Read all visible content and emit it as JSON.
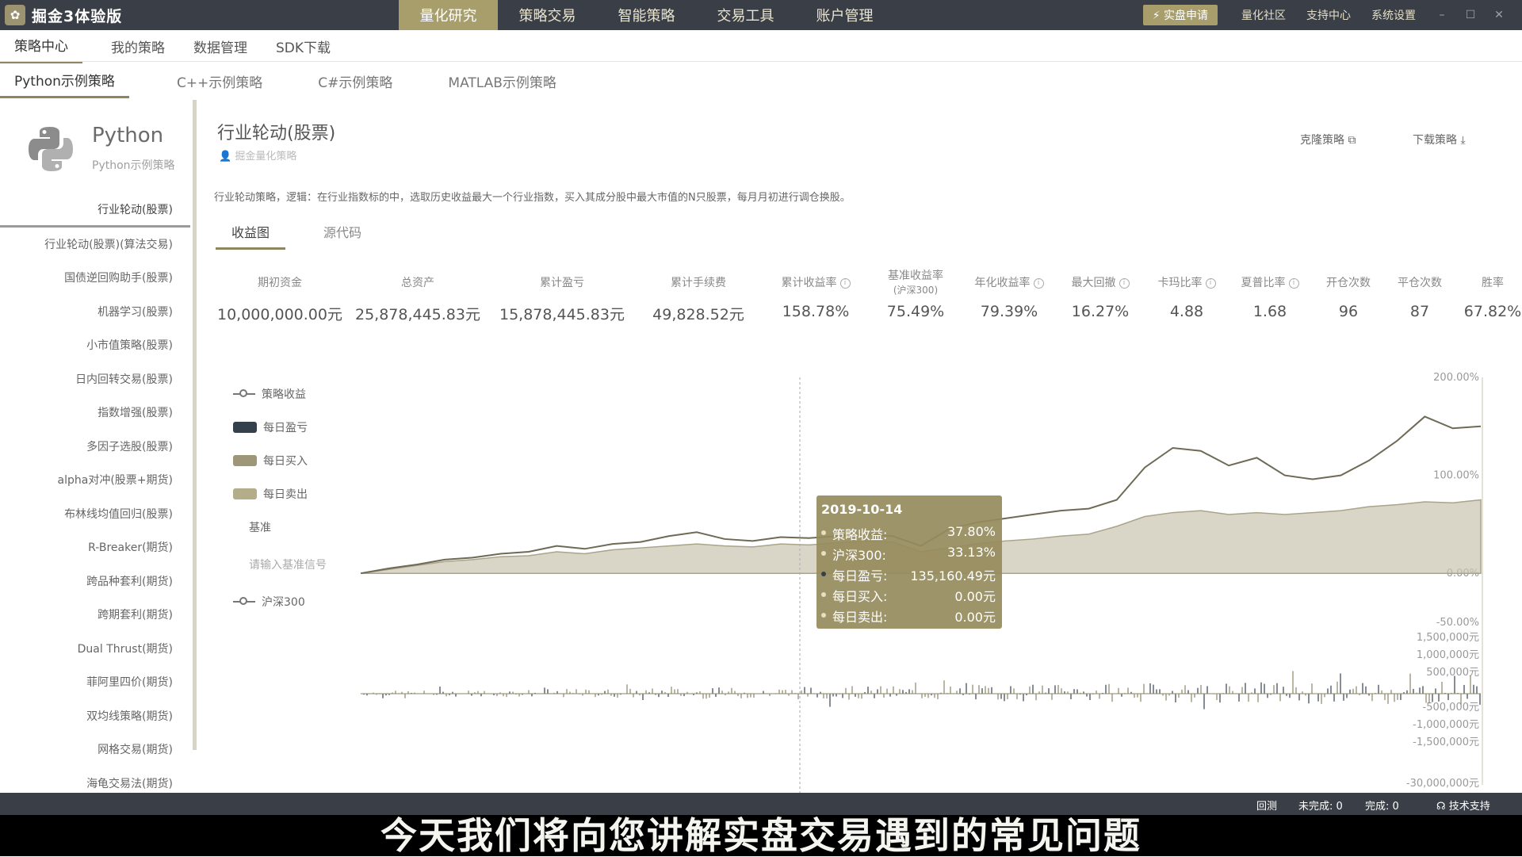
{
  "app": {
    "title": "掘金3体验版"
  },
  "main_nav": [
    "量化研究",
    "策略交易",
    "智能策略",
    "交易工具",
    "账户管理"
  ],
  "top_right": {
    "live": "实盘申请",
    "links": [
      "量化社区",
      "支持中心",
      "系统设置"
    ]
  },
  "sub_nav": [
    "策略中心",
    "我的策略",
    "数据管理",
    "SDK下载"
  ],
  "lang_tabs": [
    "Python示例策略",
    "C++示例策略",
    "C#示例策略",
    "MATLAB示例策略"
  ],
  "sidebar": {
    "lang_name": "Python",
    "lang_sub": "Python示例策略",
    "items": [
      "行业轮动(股票)",
      "行业轮动(股票)(算法交易)",
      "国债逆回购助手(股票)",
      "机器学习(股票)",
      "小市值策略(股票)",
      "日内回转交易(股票)",
      "指数增强(股票)",
      "多因子选股(股票)",
      "alpha对冲(股票+期货)",
      "布林线均值回归(股票)",
      "R-Breaker(期货)",
      "跨品种套利(期货)",
      "跨期套利(期货)",
      "Dual Thrust(期货)",
      "菲阿里四价(期货)",
      "双均线策略(期货)",
      "网格交易(期货)",
      "海龟交易法(期货)"
    ]
  },
  "strategy": {
    "title": "行业轮动(股票)",
    "author": "掘金量化策略",
    "clone": "克隆策略",
    "download": "下载策略",
    "description": "行业轮动策略，逻辑：在行业指数标的中，选取历史收益最大一个行业指数，买入其成分股中最大市值的N只股票，每月月初进行调仓换股。",
    "tabs": [
      "收益图",
      "源代码"
    ]
  },
  "metrics": [
    {
      "label": "期初资金",
      "value": "10,000,000.00元",
      "info": false
    },
    {
      "label": "总资产",
      "value": "25,878,445.83元",
      "info": false
    },
    {
      "label": "累计盈亏",
      "value": "15,878,445.83元",
      "info": false
    },
    {
      "label": "累计手续费",
      "value": "49,828.52元",
      "info": false
    },
    {
      "label": "累计收益率",
      "value": "158.78%",
      "info": true
    },
    {
      "label": "基准收益率",
      "label2": "(沪深300)",
      "value": "75.49%",
      "info": false
    },
    {
      "label": "年化收益率",
      "value": "79.39%",
      "info": true
    },
    {
      "label": "最大回撤",
      "value": "16.27%",
      "info": true
    },
    {
      "label": "卡玛比率",
      "value": "4.88",
      "info": true
    },
    {
      "label": "夏普比率",
      "value": "1.68",
      "info": true
    },
    {
      "label": "开仓次数",
      "value": "96",
      "info": false
    },
    {
      "label": "平仓次数",
      "value": "87",
      "info": false
    },
    {
      "label": "胜率",
      "value": "67.82%",
      "info": false
    }
  ],
  "legend": {
    "strategy": "策略收益",
    "daily_pnl": "每日盈亏",
    "daily_buy": "每日买入",
    "daily_sell": "每日卖出",
    "benchmark_title": "基准",
    "benchmark_placeholder": "请输入基准信号",
    "hs300": "沪深300"
  },
  "colors": {
    "accent": "#a89e6c",
    "dark": "#3a3f47",
    "strategy_line": "#6e6a55",
    "benchmark_fill": "#c9c5b0",
    "pnl": "#34414d"
  },
  "chart_data": {
    "type": "line",
    "y_ticks": [
      "200.00%",
      "100.00%",
      "0.00%",
      "-50.00%"
    ],
    "y2_ticks": [
      "1,500,000元",
      "1,000,000元",
      "500,000元",
      "-500,000元",
      "-1,000,000元",
      "-1,500,000元",
      "-30,000,000元"
    ],
    "ylim": [
      -50,
      200
    ],
    "series": [
      {
        "name": "策略收益",
        "values": [
          0,
          5,
          9,
          14,
          16,
          20,
          22,
          28,
          25,
          30,
          32,
          38,
          42,
          35,
          33,
          37,
          36,
          38,
          40,
          38,
          28,
          45,
          52,
          56,
          60,
          64,
          66,
          75,
          108,
          128,
          125,
          110,
          118,
          100,
          96,
          100,
          115,
          135,
          160,
          148,
          150
        ]
      },
      {
        "name": "沪深300",
        "values": [
          0,
          4,
          8,
          12,
          14,
          17,
          18,
          22,
          20,
          24,
          26,
          28,
          30,
          28,
          27,
          30,
          29,
          31,
          33,
          32,
          22,
          26,
          30,
          33,
          35,
          38,
          40,
          48,
          58,
          62,
          64,
          60,
          62,
          60,
          62,
          64,
          68,
          70,
          73,
          72,
          75
        ]
      }
    ]
  },
  "tooltip": {
    "date": "2019-10-14",
    "rows": [
      {
        "k": "策略收益:",
        "v": "37.80%"
      },
      {
        "k": "沪深300:",
        "v": "33.13%"
      },
      {
        "k": "每日盈亏:",
        "v": "135,160.49元"
      },
      {
        "k": "每日买入:",
        "v": "0.00元"
      },
      {
        "k": "每日卖出:",
        "v": "0.00元"
      }
    ]
  },
  "status": {
    "backtest": "回测",
    "pending": "未完成: 0",
    "done": "完成: 0",
    "support": "技术支持"
  },
  "subtitle": "今天我们将向您讲解实盘交易遇到的常见问题"
}
